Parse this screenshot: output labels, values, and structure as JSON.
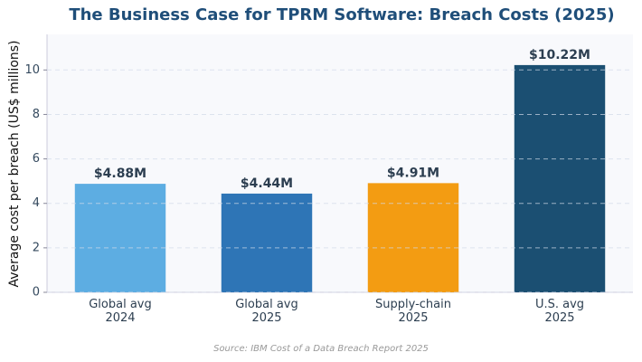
{
  "chart_data": {
    "type": "bar",
    "title": "The Business Case for TPRM Software: Breach Costs (2025)",
    "y_label": "Average cost per breach (US$ millions)",
    "source": "Source: IBM Cost of a Data Breach Report 2025",
    "categories": [
      "Global avg\n2024",
      "Global avg\n2025",
      "Supply-chain\n2025",
      "U.S. avg\n2025"
    ],
    "values": [
      4.88,
      4.44,
      4.91,
      10.22
    ],
    "value_labels": [
      "$4.88M",
      "$4.44M",
      "$4.91M",
      "$10.22M"
    ],
    "colors": [
      "#5dade2",
      "#2e75b6",
      "#f39c12",
      "#1b4f72"
    ],
    "ylim": [
      0,
      11.6
    ],
    "yticks": [
      0,
      2,
      4,
      6,
      8,
      10
    ],
    "grid": true
  }
}
